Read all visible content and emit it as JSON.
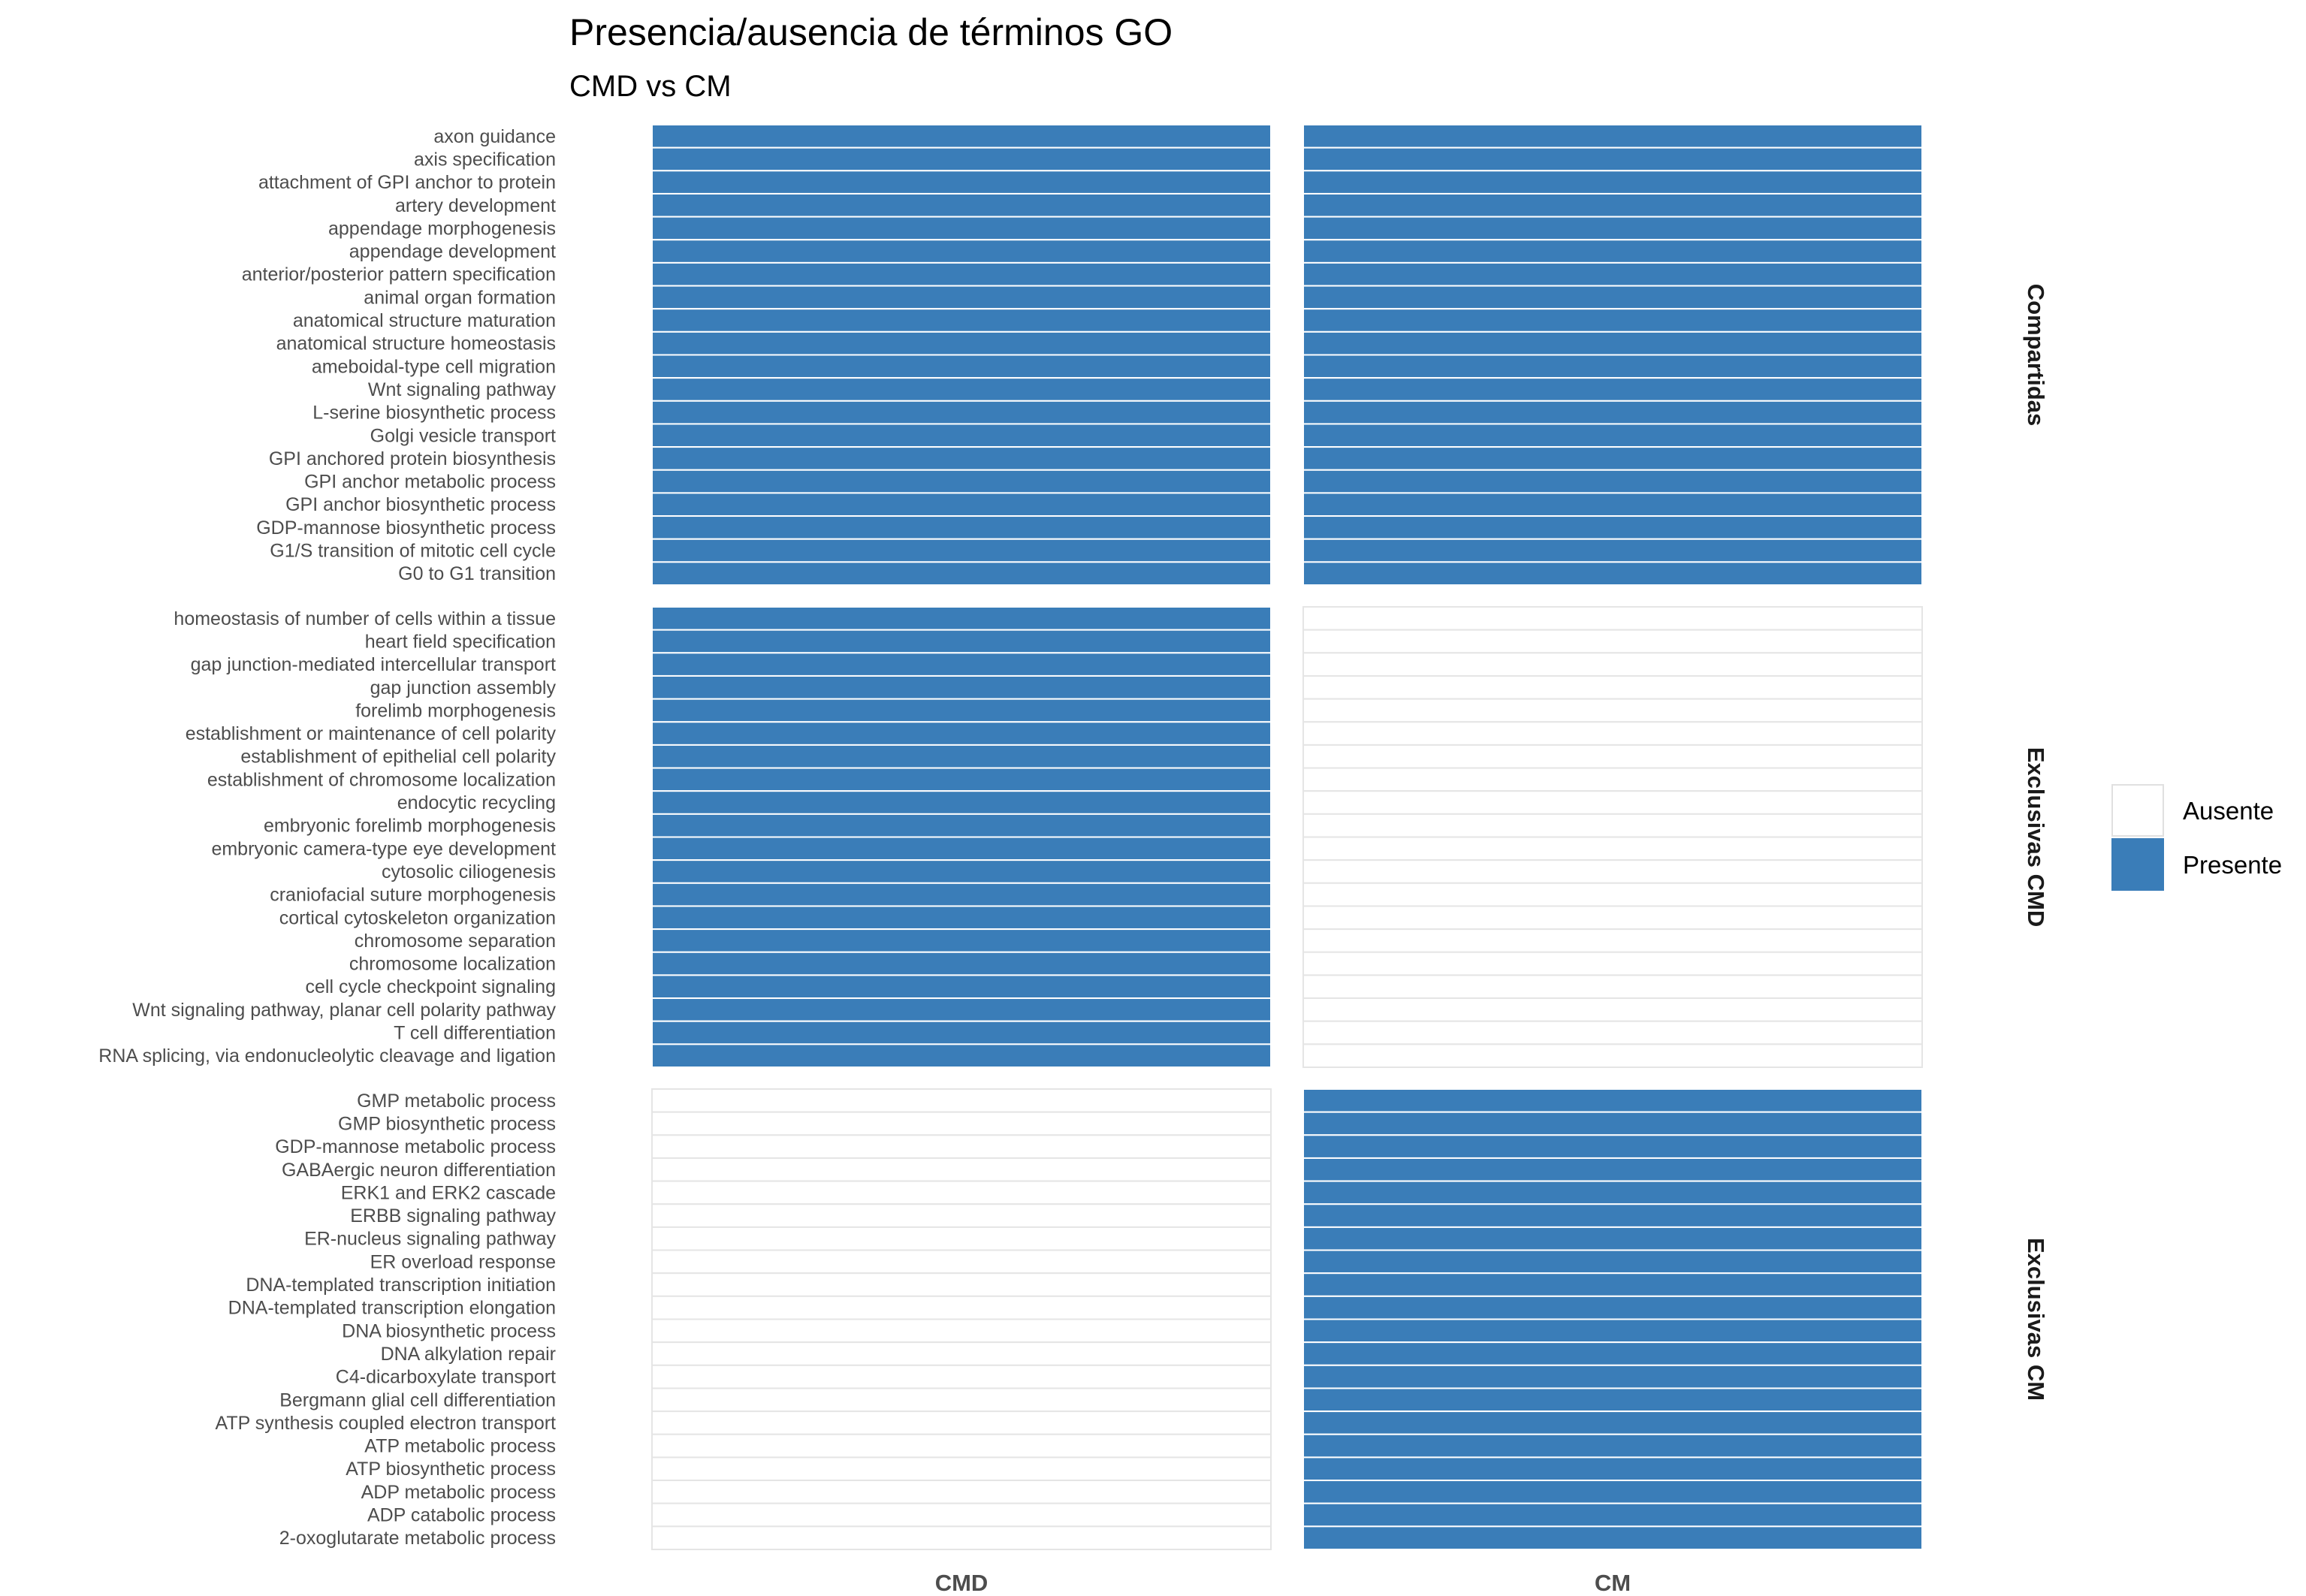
{
  "chart_data": {
    "type": "heatmap",
    "title": "Presencia/ausencia de términos GO",
    "subtitle": "CMD vs CM",
    "columns": [
      "CMD",
      "CM"
    ],
    "legend": {
      "position": "right",
      "entries": [
        {
          "label": "Ausente",
          "color": "#FFFFFF"
        },
        {
          "label": "Presente",
          "color": "#3A7DB8"
        }
      ]
    },
    "colors": {
      "present": "#3A7DB8",
      "absent": "#FFFFFF",
      "tile_border": "#E5E5E5"
    },
    "panels": [
      {
        "name": "Compartidas",
        "present": [
          "CMD",
          "CM"
        ],
        "terms": [
          "axon guidance",
          "axis specification",
          "attachment of GPI anchor to protein",
          "artery development",
          "appendage morphogenesis",
          "appendage development",
          "anterior/posterior pattern specification",
          "animal organ formation",
          "anatomical structure maturation",
          "anatomical structure homeostasis",
          "ameboidal-type cell migration",
          "Wnt signaling pathway",
          "L-serine biosynthetic process",
          "Golgi vesicle transport",
          "GPI anchored protein biosynthesis",
          "GPI anchor metabolic process",
          "GPI anchor biosynthetic process",
          "GDP-mannose biosynthetic process",
          "G1/S transition of mitotic cell cycle",
          "G0 to G1 transition"
        ]
      },
      {
        "name": "Exclusivas CMD",
        "present": [
          "CMD"
        ],
        "terms": [
          "homeostasis of number of cells within a tissue",
          "heart field specification",
          "gap junction-mediated intercellular transport",
          "gap junction assembly",
          "forelimb morphogenesis",
          "establishment or maintenance of cell polarity",
          "establishment of epithelial cell polarity",
          "establishment of chromosome localization",
          "endocytic recycling",
          "embryonic forelimb morphogenesis",
          "embryonic camera-type eye development",
          "cytosolic ciliogenesis",
          "craniofacial suture morphogenesis",
          "cortical cytoskeleton organization",
          "chromosome separation",
          "chromosome localization",
          "cell cycle checkpoint signaling",
          "Wnt signaling pathway, planar cell polarity pathway",
          "T cell differentiation",
          "RNA splicing, via endonucleolytic cleavage and ligation"
        ]
      },
      {
        "name": "Exclusivas CM",
        "present": [
          "CM"
        ],
        "terms": [
          "GMP metabolic process",
          "GMP biosynthetic process",
          "GDP-mannose metabolic process",
          "GABAergic neuron differentiation",
          "ERK1 and ERK2 cascade",
          "ERBB signaling pathway",
          "ER-nucleus signaling pathway",
          "ER overload response",
          "DNA-templated transcription initiation",
          "DNA-templated transcription elongation",
          "DNA biosynthetic process",
          "DNA alkylation repair",
          "C4-dicarboxylate transport",
          "Bergmann glial cell differentiation",
          "ATP synthesis coupled electron transport",
          "ATP metabolic process",
          "ATP biosynthetic process",
          "ADP metabolic process",
          "ADP catabolic process",
          "2-oxoglutarate metabolic process"
        ]
      }
    ]
  }
}
